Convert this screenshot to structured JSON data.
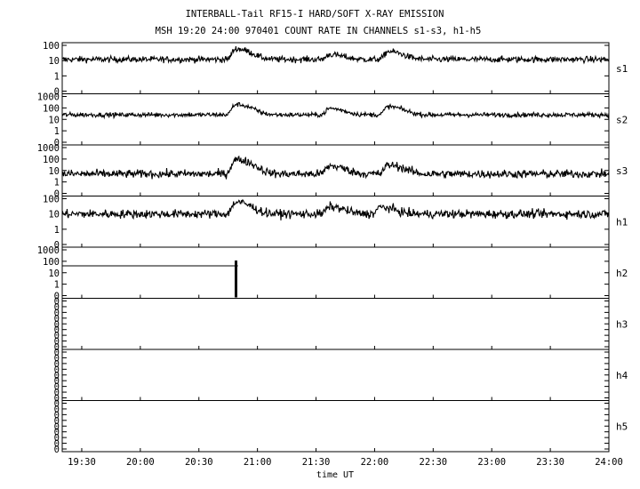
{
  "chart_data": {
    "type": "line",
    "title": "INTERBALL-Tail RF15-I HARD/SOFT X-RAY EMISSION",
    "subtitle": "MSH 19:20 24:00 970401  COUNT RATE IN CHANNELS s1-s3, h1-h5",
    "xlabel": "time UT",
    "x_range": [
      "19:20",
      "24:00"
    ],
    "x_ticks": [
      "19:30",
      "20:00",
      "20:30",
      "21:00",
      "21:30",
      "22:00",
      "22:30",
      "23:00",
      "23:30",
      "24:00"
    ],
    "y_scale": "log",
    "panels": [
      {
        "name": "s1",
        "y_ticks": [
          "100",
          "10",
          "1",
          "0"
        ],
        "baseline": 12,
        "noise": 0.1,
        "events": [
          {
            "time": "20:49",
            "peak": 60
          },
          {
            "time": "21:37",
            "peak": 25
          },
          {
            "time": "22:07",
            "peak": 40
          }
        ]
      },
      {
        "name": "s2",
        "y_ticks": [
          "1000",
          "100",
          "10",
          "1",
          "0"
        ],
        "baseline": 25,
        "noise": 0.1,
        "events": [
          {
            "time": "20:49",
            "peak": 200
          },
          {
            "time": "21:37",
            "peak": 90
          },
          {
            "time": "22:07",
            "peak": 130
          }
        ]
      },
      {
        "name": "s3",
        "y_ticks": [
          "1000",
          "100",
          "10",
          "1",
          "0"
        ],
        "baseline": 5,
        "noise": 0.18,
        "events": [
          {
            "time": "20:49",
            "peak": 90
          },
          {
            "time": "21:37",
            "peak": 25
          },
          {
            "time": "22:07",
            "peak": 30
          }
        ]
      },
      {
        "name": "h1",
        "y_ticks": [
          "100",
          "10",
          "1",
          "0"
        ],
        "baseline": 10,
        "noise": 0.14,
        "events": [
          {
            "time": "20:49",
            "peak": 60
          },
          {
            "time": "21:37",
            "peak": 30
          },
          {
            "time": "22:03",
            "peak": 28
          }
        ]
      },
      {
        "name": "h2",
        "y_ticks": [
          "1000",
          "100",
          "10",
          "1",
          "0"
        ],
        "flat_value": 40,
        "flat_end": "20:50",
        "spike_time": "20:49"
      },
      {
        "name": "h3",
        "y_ticks": [
          "0",
          "0",
          "0",
          "0",
          "0",
          "0",
          "0",
          "0",
          "0"
        ]
      },
      {
        "name": "h4",
        "y_ticks": [
          "0",
          "0",
          "0",
          "0",
          "0",
          "0",
          "0",
          "0",
          "0"
        ]
      },
      {
        "name": "h5",
        "y_ticks": [
          "0",
          "0",
          "0",
          "0",
          "0",
          "0",
          "0",
          "0",
          "0"
        ]
      }
    ]
  }
}
